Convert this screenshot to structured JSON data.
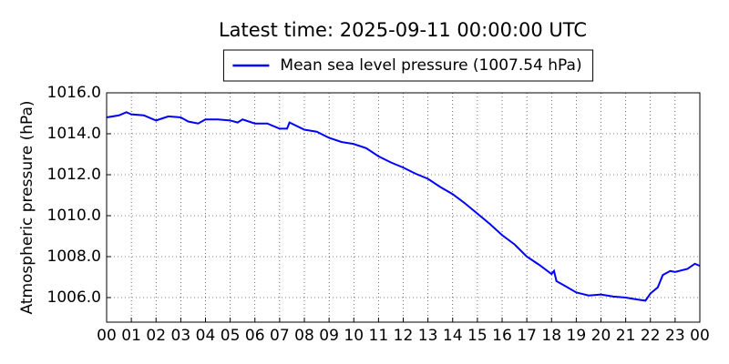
{
  "chart_data": {
    "type": "line",
    "title": "Latest time: 2025-09-11 00:00:00 UTC",
    "ylabel": "Atmospheric pressure (hPa)",
    "x": [
      0,
      0.5,
      0.8,
      1,
      1.5,
      2,
      2.5,
      3,
      3.3,
      3.7,
      4,
      4.5,
      5,
      5.3,
      5.5,
      6,
      6.5,
      7,
      7.3,
      7.4,
      8,
      8.5,
      9,
      9.5,
      10,
      10.5,
      11,
      11.5,
      12,
      12.5,
      13,
      13.5,
      14,
      14.5,
      15,
      15.5,
      16,
      16.5,
      17,
      17.5,
      18,
      18.1,
      18.2,
      18.5,
      19,
      19.5,
      20,
      20.5,
      21,
      21.5,
      21.8,
      22,
      22.3,
      22.5,
      22.8,
      23,
      23.5,
      23.8,
      24
    ],
    "series": [
      {
        "name": "Mean sea level pressure (1007.54 hPa)",
        "color": "#0000ff",
        "values": [
          1014.8,
          1014.9,
          1015.05,
          1014.95,
          1014.9,
          1014.65,
          1014.85,
          1014.8,
          1014.6,
          1014.5,
          1014.7,
          1014.7,
          1014.65,
          1014.55,
          1014.7,
          1014.5,
          1014.5,
          1014.25,
          1014.25,
          1014.55,
          1014.2,
          1014.1,
          1013.8,
          1013.6,
          1013.5,
          1013.3,
          1012.9,
          1012.6,
          1012.35,
          1012.05,
          1011.8,
          1011.4,
          1011.05,
          1010.6,
          1010.1,
          1009.6,
          1009.05,
          1008.6,
          1008.0,
          1007.6,
          1007.15,
          1007.3,
          1006.8,
          1006.6,
          1006.25,
          1006.1,
          1006.15,
          1006.05,
          1006.0,
          1005.9,
          1005.85,
          1006.2,
          1006.5,
          1007.1,
          1007.3,
          1007.25,
          1007.4,
          1007.65,
          1007.55
        ]
      }
    ],
    "xlim": [
      0,
      24
    ],
    "xticks": [
      {
        "value": 0,
        "label": "00"
      },
      {
        "value": 1,
        "label": "01"
      },
      {
        "value": 2,
        "label": "02"
      },
      {
        "value": 3,
        "label": "03"
      },
      {
        "value": 4,
        "label": "04"
      },
      {
        "value": 5,
        "label": "05"
      },
      {
        "value": 6,
        "label": "06"
      },
      {
        "value": 7,
        "label": "07"
      },
      {
        "value": 8,
        "label": "08"
      },
      {
        "value": 9,
        "label": "09"
      },
      {
        "value": 10,
        "label": "10"
      },
      {
        "value": 11,
        "label": "11"
      },
      {
        "value": 12,
        "label": "12"
      },
      {
        "value": 13,
        "label": "13"
      },
      {
        "value": 14,
        "label": "14"
      },
      {
        "value": 15,
        "label": "15"
      },
      {
        "value": 16,
        "label": "16"
      },
      {
        "value": 17,
        "label": "17"
      },
      {
        "value": 18,
        "label": "18"
      },
      {
        "value": 19,
        "label": "19"
      },
      {
        "value": 20,
        "label": "20"
      },
      {
        "value": 21,
        "label": "21"
      },
      {
        "value": 22,
        "label": "22"
      },
      {
        "value": 23,
        "label": "23"
      },
      {
        "value": 24,
        "label": "00"
      }
    ],
    "ylim": [
      1004.8,
      1016
    ],
    "yticks": [
      {
        "value": 1006,
        "label": "1006.0"
      },
      {
        "value": 1008,
        "label": "1008.0"
      },
      {
        "value": 1010,
        "label": "1010.0"
      },
      {
        "value": 1012,
        "label": "1012.0"
      },
      {
        "value": 1014,
        "label": "1014.0"
      },
      {
        "value": 1016,
        "label": "1016.0"
      }
    ],
    "grid": true,
    "legend": "top"
  }
}
